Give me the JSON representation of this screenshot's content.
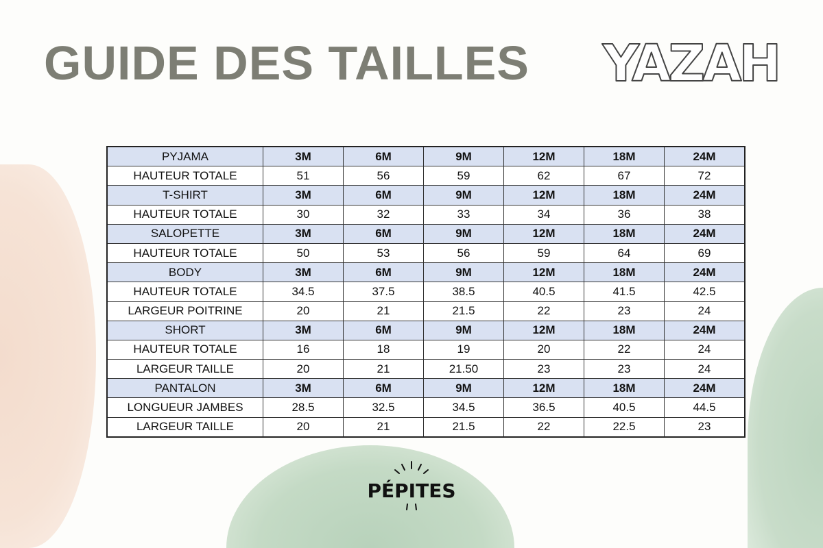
{
  "title": "GUIDE DES TAILLES",
  "brand_logo": "YAZAH",
  "footer_logo": "PÉPITES",
  "colors": {
    "title": "#7d7e74",
    "header_row": "#d9e1f2",
    "blob_peach": "#f3dccd",
    "blob_green": "#b8d2bb"
  },
  "table": {
    "rows": [
      {
        "type": "head",
        "cells": [
          "PYJAMA",
          "3M",
          "6M",
          "9M",
          "12M",
          "18M",
          "24M"
        ]
      },
      {
        "type": "data",
        "cells": [
          "HAUTEUR TOTALE",
          "51",
          "56",
          "59",
          "62",
          "67",
          "72"
        ]
      },
      {
        "type": "head",
        "cells": [
          "T-SHIRT",
          "3M",
          "6M",
          "9M",
          "12M",
          "18M",
          "24M"
        ]
      },
      {
        "type": "data",
        "cells": [
          "HAUTEUR TOTALE",
          "30",
          "32",
          "33",
          "34",
          "36",
          "38"
        ]
      },
      {
        "type": "head",
        "cells": [
          "SALOPETTE",
          "3M",
          "6M",
          "9M",
          "12M",
          "18M",
          "24M"
        ]
      },
      {
        "type": "data",
        "cells": [
          "HAUTEUR TOTALE",
          "50",
          "53",
          "56",
          "59",
          "64",
          "69"
        ]
      },
      {
        "type": "head",
        "cells": [
          "BODY",
          "3M",
          "6M",
          "9M",
          "12M",
          "18M",
          "24M"
        ]
      },
      {
        "type": "data",
        "cells": [
          "HAUTEUR TOTALE",
          "34.5",
          "37.5",
          "38.5",
          "40.5",
          "41.5",
          "42.5"
        ]
      },
      {
        "type": "data",
        "cells": [
          "LARGEUR POITRINE",
          "20",
          "21",
          "21.5",
          "22",
          "23",
          "24"
        ]
      },
      {
        "type": "head",
        "cells": [
          "SHORT",
          "3M",
          "6M",
          "9M",
          "12M",
          "18M",
          "24M"
        ]
      },
      {
        "type": "data",
        "cells": [
          "HAUTEUR TOTALE",
          "16",
          "18",
          "19",
          "20",
          "22",
          "24"
        ]
      },
      {
        "type": "data",
        "cells": [
          "LARGEUR TAILLE",
          "20",
          "21",
          "21.50",
          "23",
          "23",
          "24"
        ]
      },
      {
        "type": "head",
        "cells": [
          "PANTALON",
          "3M",
          "6M",
          "9M",
          "12M",
          "18M",
          "24M"
        ]
      },
      {
        "type": "data",
        "cells": [
          "LONGUEUR JAMBES",
          "28.5",
          "32.5",
          "34.5",
          "36.5",
          "40.5",
          "44.5"
        ]
      },
      {
        "type": "data",
        "cells": [
          "LARGEUR TAILLE",
          "20",
          "21",
          "21.5",
          "22",
          "22.5",
          "23"
        ]
      }
    ]
  }
}
